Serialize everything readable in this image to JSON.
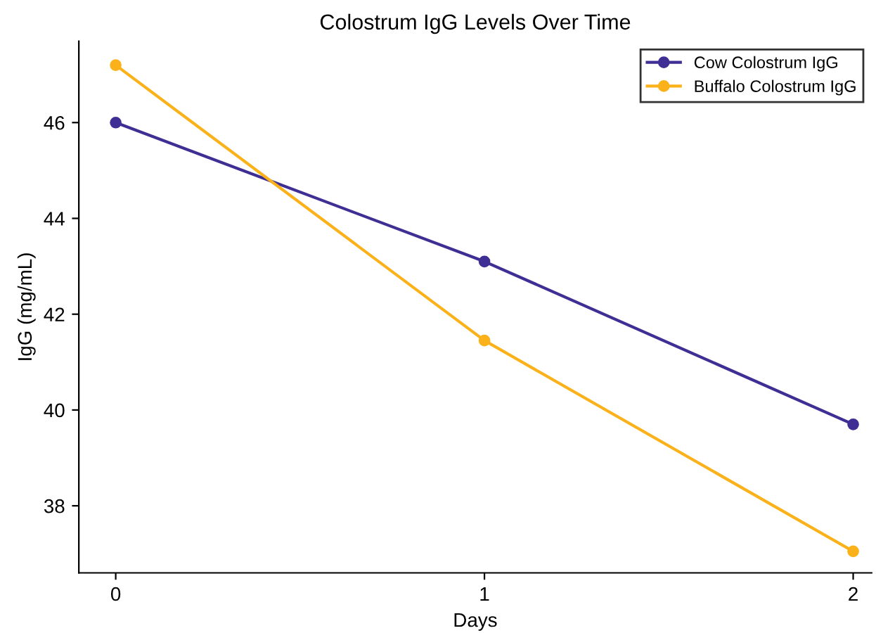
{
  "chart_data": {
    "type": "line",
    "title": "Colostrum IgG Levels Over Time",
    "xlabel": "Days",
    "ylabel": "IgG (mg/mL)",
    "x": [
      0,
      1,
      2
    ],
    "series": [
      {
        "name": "Cow Colostrum IgG",
        "color": "#3f2f95",
        "values": [
          46.0,
          43.1,
          39.7
        ]
      },
      {
        "name": "Buffalo Colostrum IgG",
        "color": "#fbb21a",
        "values": [
          47.2,
          41.45,
          37.05
        ]
      }
    ],
    "xlim": [
      -0.1,
      2.05
    ],
    "xticks": [
      0,
      1,
      2
    ],
    "ylim": [
      36.6,
      47.7
    ],
    "yticks": [
      38,
      40,
      42,
      44,
      46
    ],
    "marker": "circle",
    "line_style": "solid",
    "legend": "top right",
    "grid": false
  }
}
